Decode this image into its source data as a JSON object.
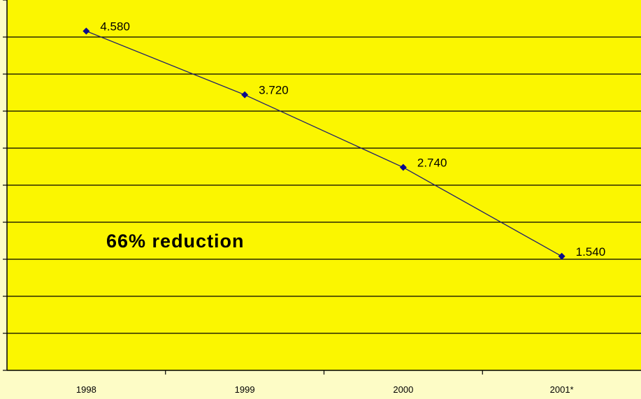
{
  "chart_data": {
    "type": "line",
    "categories": [
      "1998",
      "1999",
      "2000",
      "2001*"
    ],
    "values": [
      4580,
      3720,
      2740,
      1540
    ],
    "data_labels": [
      "4.580",
      "3.720",
      "2.740",
      "1.540"
    ],
    "annotation": "66% reduction",
    "title": "",
    "xlabel": "",
    "ylabel": "",
    "ylim": [
      0,
      5000
    ],
    "y_gridline_step": 500,
    "y_tick_labels_shown": false,
    "grid": true,
    "legend": "none",
    "colors": {
      "plot_background": "#fbf600",
      "page_background": "#fdfcc6",
      "gridline": "#000000",
      "line": "#1f1f6e",
      "marker": "#0a0a8c"
    }
  }
}
